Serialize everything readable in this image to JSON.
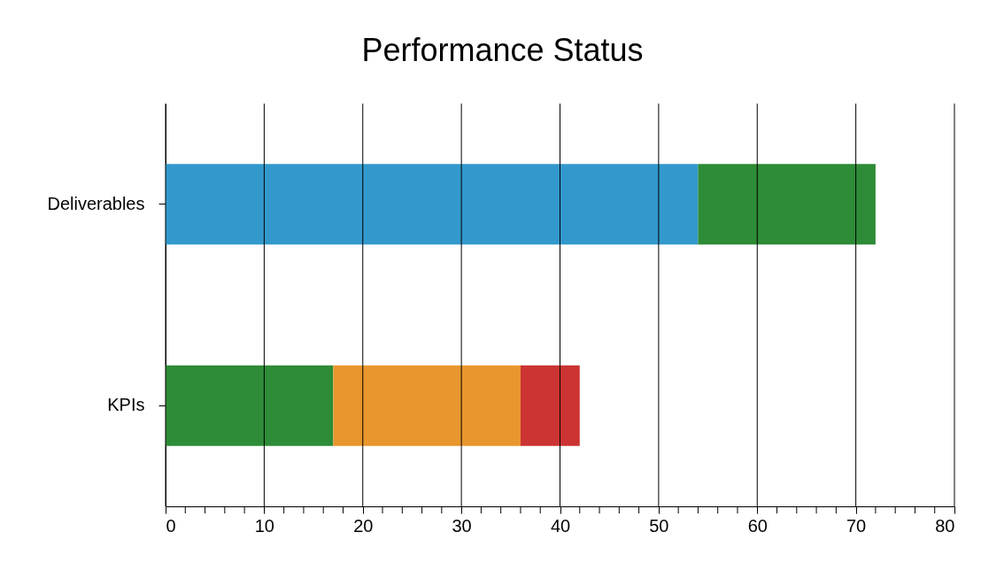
{
  "chart_data": {
    "type": "bar",
    "title": "Performance Status",
    "orientation": "horizontal",
    "stacked": true,
    "categories": [
      "Deliverables",
      "KPIs"
    ],
    "series": [
      {
        "values": [
          54,
          17
        ],
        "colors": [
          "#3399cc",
          "#2e8b37"
        ]
      },
      {
        "values": [
          18,
          19
        ],
        "colors": [
          "#2e8b37",
          "#e8962e"
        ]
      },
      {
        "values": [
          null,
          6
        ],
        "color": "#cc3333"
      }
    ],
    "xlim": [
      0,
      80
    ],
    "xticks": [
      0,
      {
        "value": 2,
        "label": null
      },
      {
        "value": 4,
        "label": null
      },
      {
        "value": 6,
        "label": null
      },
      {
        "value": 8,
        "label": null
      },
      10,
      {
        "value": 12,
        "label": null
      },
      {
        "value": 14,
        "label": null
      },
      {
        "value": 16,
        "label": null
      },
      {
        "value": 18,
        "label": null
      },
      20,
      {
        "value": 22,
        "label": null
      },
      {
        "value": 24,
        "label": null
      },
      {
        "value": 26,
        "label": null
      },
      {
        "value": 28,
        "label": null
      },
      30,
      {
        "value": 32,
        "label": null
      },
      {
        "value": 34,
        "label": null
      },
      {
        "value": 36,
        "label": null
      },
      {
        "value": 38,
        "label": null
      },
      40,
      {
        "value": 42,
        "label": null
      },
      {
        "value": 44,
        "label": null
      },
      {
        "value": 46,
        "label": null
      },
      {
        "value": 48,
        "label": null
      },
      50,
      {
        "value": 52,
        "label": null
      },
      {
        "value": 54,
        "label": null
      },
      {
        "value": 56,
        "label": null
      },
      {
        "value": 58,
        "label": null
      },
      60,
      {
        "value": 62,
        "label": null
      },
      {
        "value": 64,
        "label": null
      },
      {
        "value": 66,
        "label": null
      },
      {
        "value": 68,
        "label": null
      },
      70,
      {
        "value": 72,
        "label": null
      },
      {
        "value": 74,
        "label": null
      },
      {
        "value": 76,
        "label": null
      },
      {
        "value": 78,
        "label": null
      },
      80
    ],
    "grid": "x"
  }
}
